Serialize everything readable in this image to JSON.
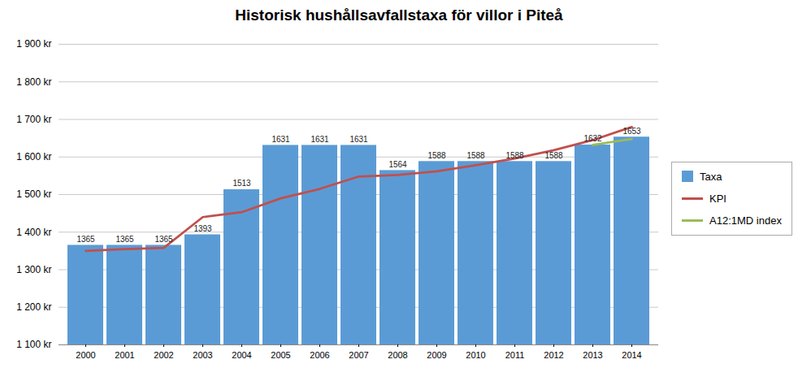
{
  "chart_data": {
    "type": "bar",
    "title": "Historisk hushållsavfallstaxa för villor i Piteå",
    "categories": [
      2000,
      2001,
      2002,
      2003,
      2004,
      2005,
      2006,
      2007,
      2008,
      2009,
      2010,
      2011,
      2012,
      2013,
      2014
    ],
    "series": [
      {
        "name": "Taxa",
        "type": "bar",
        "color": "#5B9BD5",
        "data_labels": true,
        "values": [
          1365,
          1365,
          1365,
          1393,
          1513,
          1631,
          1631,
          1631,
          1564,
          1588,
          1588,
          1588,
          1588,
          1632,
          1653
        ]
      },
      {
        "name": "KPI",
        "type": "line",
        "color": "#C0504D",
        "values": [
          1350,
          1355,
          1358,
          1440,
          1453,
          1490,
          1515,
          1548,
          1552,
          1562,
          1578,
          1596,
          1618,
          1645,
          1680
        ]
      },
      {
        "name": "A12:1MD index",
        "type": "line",
        "color": "#9BBB59",
        "values": [
          null,
          null,
          null,
          null,
          null,
          null,
          null,
          null,
          null,
          null,
          null,
          null,
          null,
          1632,
          1648
        ]
      }
    ],
    "ylim": [
      1100,
      1900
    ],
    "yticks": [
      {
        "value": 1100,
        "label": "1 100 kr"
      },
      {
        "value": 1200,
        "label": "1 200 kr"
      },
      {
        "value": 1300,
        "label": "1 300 kr"
      },
      {
        "value": 1400,
        "label": "1 400 kr"
      },
      {
        "value": 1500,
        "label": "1 500 kr"
      },
      {
        "value": 1600,
        "label": "1 600 kr"
      },
      {
        "value": 1700,
        "label": "1 700 kr"
      },
      {
        "value": 1800,
        "label": "1 800 kr"
      },
      {
        "value": 1900,
        "label": "1 900 kr"
      }
    ],
    "grid": true,
    "legend": "right"
  }
}
